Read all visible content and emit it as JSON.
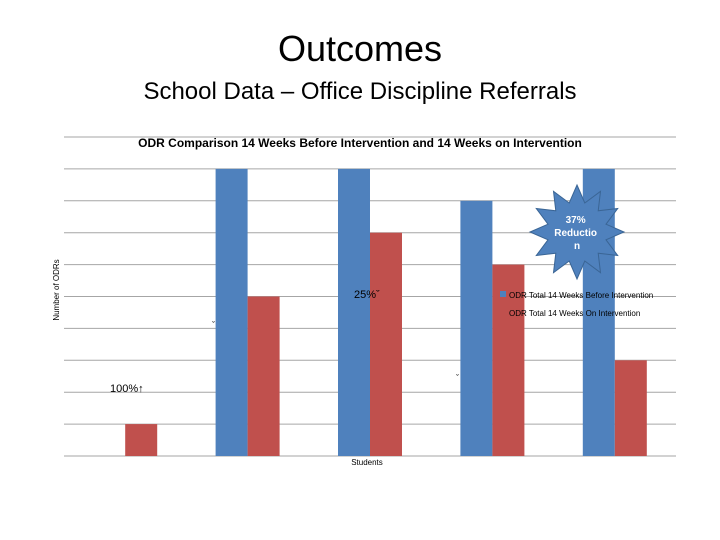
{
  "slide": {
    "title": "Outcomes",
    "subtitle": "School Data – Office Discipline Referrals"
  },
  "chart_data": {
    "type": "bar",
    "title": "ODR Comparison 14 Weeks Before Intervention and 14 Weeks on Intervention",
    "xlabel": "Students",
    "ylabel": "Number of ODRs",
    "ylim": [
      0,
      10
    ],
    "grid": true,
    "legend_position": "right",
    "categories": [
      "",
      "",
      "",
      "",
      ""
    ],
    "series": [
      {
        "name": "ODR Total 14 Weeks Before Intervention",
        "color": "#4f81bd",
        "values": [
          0,
          9,
          9,
          8,
          9
        ]
      },
      {
        "name": "ODR Total 14 Weeks On Intervention",
        "color": "#c0504d",
        "values": [
          1,
          5,
          7,
          6,
          3
        ]
      }
    ],
    "annotations": [
      {
        "text": "100%↑",
        "category": 0
      },
      {
        "text": "ˇ",
        "category": 1
      },
      {
        "text": "25%ˇ",
        "category": 2
      },
      {
        "text": "ˇ",
        "category": 3
      },
      {
        "text": "37% Reductio n",
        "category": 4,
        "shape": "starburst"
      }
    ]
  }
}
